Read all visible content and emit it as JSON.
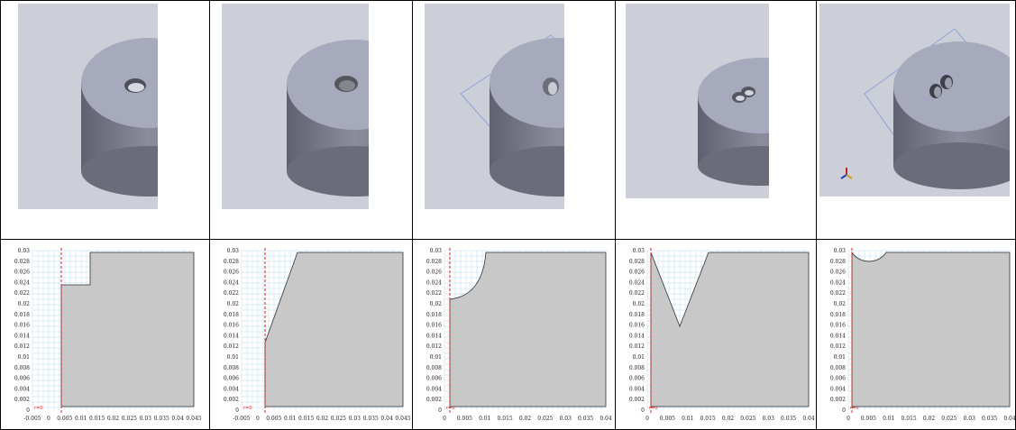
{
  "panels": [
    {
      "id": "1",
      "shape": "step"
    },
    {
      "id": "2",
      "shape": "slope"
    },
    {
      "id": "3",
      "shape": "quarter-round"
    },
    {
      "id": "4",
      "shape": "v-notch"
    },
    {
      "id": "5",
      "shape": "half-round"
    }
  ],
  "plots": [
    {
      "y_ticks": [
        "0.03",
        "0.028",
        "0.026",
        "0.024",
        "0.022",
        "0.02",
        "0.018",
        "0.016",
        "0.014",
        "0.012",
        "0.01",
        "0.008",
        "0.006",
        "0.004",
        "0.002",
        "0"
      ],
      "x_ticks": [
        "-0.005",
        "0",
        "0.005",
        "0.01",
        "0.015",
        "0.02",
        "0.025",
        "0.03",
        "0.035",
        "0.04",
        "0.045"
      ],
      "axis_label": "r=0"
    },
    {
      "y_ticks": [
        "0.03",
        "0.028",
        "0.026",
        "0.024",
        "0.022",
        "0.02",
        "0.018",
        "0.016",
        "0.014",
        "0.012",
        "0.01",
        "0.008",
        "0.006",
        "0.004",
        "0.002",
        "0"
      ],
      "x_ticks": [
        "-0.005",
        "0",
        "0.005",
        "0.01",
        "0.015",
        "0.02",
        "0.025",
        "0.03",
        "0.035",
        "0.04",
        "0.045"
      ],
      "axis_label": "r=0"
    },
    {
      "y_ticks": [
        "0.03",
        "0.028",
        "0.026",
        "0.024",
        "0.022",
        "0.02",
        "0.018",
        "0.016",
        "0.014",
        "0.012",
        "0.01",
        "0.008",
        "0.006",
        "0.004",
        "0.002",
        "0"
      ],
      "x_ticks": [
        "0",
        "0.005",
        "0.01",
        "0.015",
        "0.02",
        "0.025",
        "0.03",
        "0.035",
        "0.04"
      ],
      "axis_label": "r=0"
    },
    {
      "y_ticks": [
        "0.03",
        "0.028",
        "0.026",
        "0.024",
        "0.022",
        "0.02",
        "0.018",
        "0.016",
        "0.014",
        "0.012",
        "0.01",
        "0.008",
        "0.006",
        "0.004",
        "0.002",
        "0"
      ],
      "x_ticks": [
        "0",
        "0.005",
        "0.01",
        "0.015",
        "0.02",
        "0.025",
        "0.03",
        "0.035",
        "0.04"
      ],
      "axis_label": "r=0"
    },
    {
      "y_ticks": [
        "0.03",
        "0.028",
        "0.026",
        "0.024",
        "0.022",
        "0.02",
        "0.018",
        "0.016",
        "0.014",
        "0.012",
        "0.01",
        "0.008",
        "0.006",
        "0.004",
        "0.002",
        "0"
      ],
      "x_ticks": [
        "0",
        "0.005",
        "0.01",
        "0.015",
        "0.02",
        "0.025",
        "0.03",
        "0.035",
        "0.04"
      ],
      "axis_label": "r=0"
    }
  ],
  "colors": {
    "viewport_bg": "#ccced8",
    "solid_light": "#a9abbb",
    "solid_dark": "#6d6f7d",
    "region_fill": "#c8c8c8",
    "grid_line": "#b9dcf0",
    "axis_red": "#dd2222"
  },
  "icons": [
    "triad-axis-icon"
  ]
}
